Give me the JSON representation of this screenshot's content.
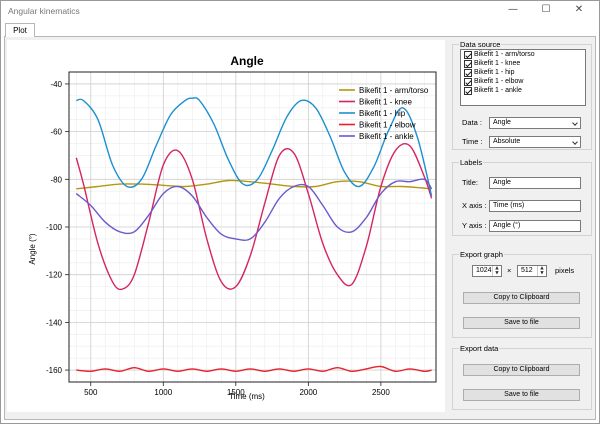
{
  "window": {
    "title": "Angular kinematics",
    "minimize_glyph": "—",
    "maximize_glyph": "☐",
    "close_glyph": "✕"
  },
  "tabs": [
    {
      "label": "Plot"
    }
  ],
  "data_source": {
    "title": "Data source",
    "items": [
      {
        "label": "Bikefit 1 - arm/torso",
        "checked": true
      },
      {
        "label": "Bikefit 1 - knee",
        "checked": true
      },
      {
        "label": "Bikefit 1 - hip",
        "checked": true
      },
      {
        "label": "Bikefit 1 - elbow",
        "checked": true
      },
      {
        "label": "Bikefit 1 - ankle",
        "checked": true
      }
    ],
    "data_label": "Data :",
    "data_value": "Angle",
    "time_label": "Time :",
    "time_value": "Absolute"
  },
  "labels": {
    "title": "Labels",
    "title_label": "Title:",
    "title_value": "Angle",
    "xaxis_label": "X axis :",
    "xaxis_value": "Time (ms)",
    "yaxis_label": "Y axis :",
    "yaxis_value": "Angle (°)"
  },
  "export_graph": {
    "title": "Export graph",
    "width": "1024",
    "times": "×",
    "height": "512",
    "unit": "pixels",
    "copy_label": "Copy to Clipboard",
    "save_label": "Save to file"
  },
  "export_data": {
    "title": "Export data",
    "copy_label": "Copy to Clipboard",
    "save_label": "Save to file"
  },
  "chart_data": {
    "type": "line",
    "title": "Angle",
    "xlabel": "Time (ms)",
    "ylabel": "Angle (°)",
    "xlim": [
      350,
      2880
    ],
    "ylim": [
      -165,
      -35
    ],
    "xticks": [
      500,
      1000,
      1500,
      2000,
      2500
    ],
    "yticks": [
      -40,
      -60,
      -80,
      -100,
      -120,
      -140,
      -160
    ],
    "grid": true,
    "legend_position": "top-right",
    "series": [
      {
        "name": "Bikefit 1 - arm/torso",
        "color": "#b8960c",
        "x": [
          400,
          550,
          700,
          850,
          1000,
          1150,
          1300,
          1450,
          1600,
          1750,
          1900,
          2050,
          2200,
          2350,
          2500,
          2650,
          2850
        ],
        "y": [
          -84,
          -83,
          -82,
          -82,
          -82.5,
          -83,
          -82,
          -80.5,
          -81,
          -82,
          -83,
          -83,
          -81,
          -81,
          -83,
          -83,
          -84
        ]
      },
      {
        "name": "Bikefit 1 - knee",
        "color": "#d62462",
        "x": [
          400,
          450,
          550,
          650,
          720,
          800,
          900,
          1000,
          1100,
          1200,
          1300,
          1400,
          1500,
          1600,
          1700,
          1800,
          1900,
          2000,
          2100,
          2200,
          2300,
          2400,
          2500,
          2600,
          2700,
          2800,
          2850
        ],
        "y": [
          -71,
          -82,
          -107,
          -123,
          -126,
          -120,
          -98,
          -74,
          -68,
          -80,
          -105,
          -123,
          -125,
          -112,
          -90,
          -70,
          -69,
          -86,
          -107,
          -120,
          -124,
          -108,
          -83,
          -68,
          -66,
          -79,
          -88
        ]
      },
      {
        "name": "Bikefit 1 - hip",
        "color": "#1c8fd0",
        "x": [
          400,
          450,
          550,
          650,
          750,
          850,
          950,
          1050,
          1150,
          1200,
          1250,
          1350,
          1450,
          1550,
          1650,
          1750,
          1850,
          1950,
          2050,
          2150,
          2250,
          2350,
          2450,
          2550,
          2650,
          2750,
          2850
        ],
        "y": [
          -47,
          -47,
          -55,
          -74,
          -83,
          -80,
          -66,
          -53,
          -47,
          -46,
          -47,
          -57,
          -72,
          -82,
          -80,
          -68,
          -54,
          -47,
          -50,
          -62,
          -77,
          -83,
          -75,
          -60,
          -50,
          -62,
          -87
        ]
      },
      {
        "name": "Bikefit 1 - elbow",
        "color": "#e8202a",
        "x": [
          400,
          500,
          600,
          700,
          800,
          900,
          1000,
          1100,
          1200,
          1300,
          1400,
          1500,
          1600,
          1700,
          1800,
          1900,
          2000,
          2100,
          2200,
          2300,
          2400,
          2500,
          2600,
          2700,
          2800,
          2850
        ],
        "y": [
          -160,
          -160.5,
          -159.5,
          -160.5,
          -159,
          -160.5,
          -159.5,
          -160.5,
          -159.5,
          -160.5,
          -159.5,
          -160.5,
          -159.5,
          -160.5,
          -159.5,
          -160.5,
          -159.5,
          -160.5,
          -159,
          -160.5,
          -159.5,
          -158.5,
          -160.5,
          -159.5,
          -160.5,
          -160
        ]
      },
      {
        "name": "Bikefit 1 - ankle",
        "color": "#6a5acd",
        "x": [
          400,
          500,
          600,
          700,
          800,
          900,
          1000,
          1100,
          1200,
          1300,
          1400,
          1500,
          1600,
          1700,
          1800,
          1900,
          2000,
          2100,
          2200,
          2300,
          2400,
          2500,
          2600,
          2700,
          2800,
          2850
        ],
        "y": [
          -86,
          -91,
          -98,
          -102,
          -102,
          -95,
          -86,
          -83,
          -87,
          -96,
          -103,
          -105,
          -105,
          -98,
          -88,
          -83,
          -83,
          -91,
          -100,
          -102,
          -96,
          -86,
          -81,
          -81,
          -80,
          -84
        ]
      }
    ]
  }
}
